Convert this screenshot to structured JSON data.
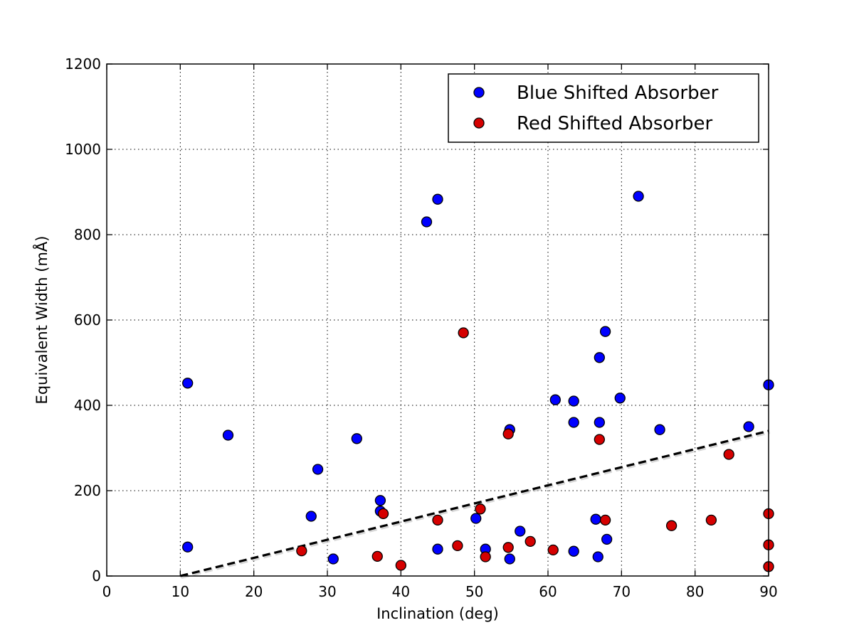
{
  "chart_data": {
    "type": "scatter",
    "title": "",
    "xlabel": "Inclination (deg)",
    "ylabel": "Equivalent Width (mÅ)",
    "xlim": [
      0,
      90
    ],
    "ylim": [
      0,
      1200
    ],
    "xticks": [
      0,
      10,
      20,
      30,
      40,
      50,
      60,
      70,
      80,
      90
    ],
    "yticks": [
      0,
      200,
      400,
      600,
      800,
      1000,
      1200
    ],
    "grid": true,
    "legend_position": "top-right",
    "series": [
      {
        "name": "Blue Shifted Absorber",
        "color": "#0000ff",
        "points": [
          [
            11,
            452
          ],
          [
            11,
            68
          ],
          [
            16.5,
            330
          ],
          [
            27.8,
            140
          ],
          [
            28.7,
            250
          ],
          [
            30.8,
            40
          ],
          [
            34,
            322
          ],
          [
            37.2,
            177
          ],
          [
            37.2,
            152
          ],
          [
            43.5,
            830
          ],
          [
            45,
            883
          ],
          [
            45,
            63
          ],
          [
            50.2,
            135
          ],
          [
            51.5,
            63
          ],
          [
            54.8,
            343
          ],
          [
            54.8,
            40
          ],
          [
            56.2,
            105
          ],
          [
            61,
            413
          ],
          [
            63.5,
            410
          ],
          [
            63.5,
            360
          ],
          [
            63.5,
            58
          ],
          [
            66.5,
            133
          ],
          [
            66.8,
            45
          ],
          [
            67,
            360
          ],
          [
            67,
            512
          ],
          [
            67.8,
            573
          ],
          [
            68,
            86
          ],
          [
            69.8,
            417
          ],
          [
            72.3,
            890
          ],
          [
            75.2,
            343
          ],
          [
            87.3,
            350
          ],
          [
            90,
            448
          ]
        ]
      },
      {
        "name": "Red Shifted Absorber",
        "color": "#d50000",
        "points": [
          [
            26.5,
            59
          ],
          [
            36.8,
            46
          ],
          [
            37.6,
            146
          ],
          [
            40,
            25
          ],
          [
            45,
            131
          ],
          [
            47.7,
            71
          ],
          [
            48.5,
            570
          ],
          [
            50.8,
            157
          ],
          [
            51.5,
            45
          ],
          [
            54.6,
            333
          ],
          [
            54.6,
            67
          ],
          [
            57.6,
            81
          ],
          [
            60.7,
            61
          ],
          [
            67,
            320
          ],
          [
            67.8,
            131
          ],
          [
            76.8,
            118
          ],
          [
            82.2,
            131
          ],
          [
            84.6,
            285
          ],
          [
            90,
            146
          ],
          [
            90,
            73
          ],
          [
            90,
            22
          ]
        ]
      }
    ],
    "trend_line": {
      "style": "dashed",
      "color": "#000000",
      "x": [
        10,
        90
      ],
      "y": [
        0,
        340
      ]
    }
  }
}
